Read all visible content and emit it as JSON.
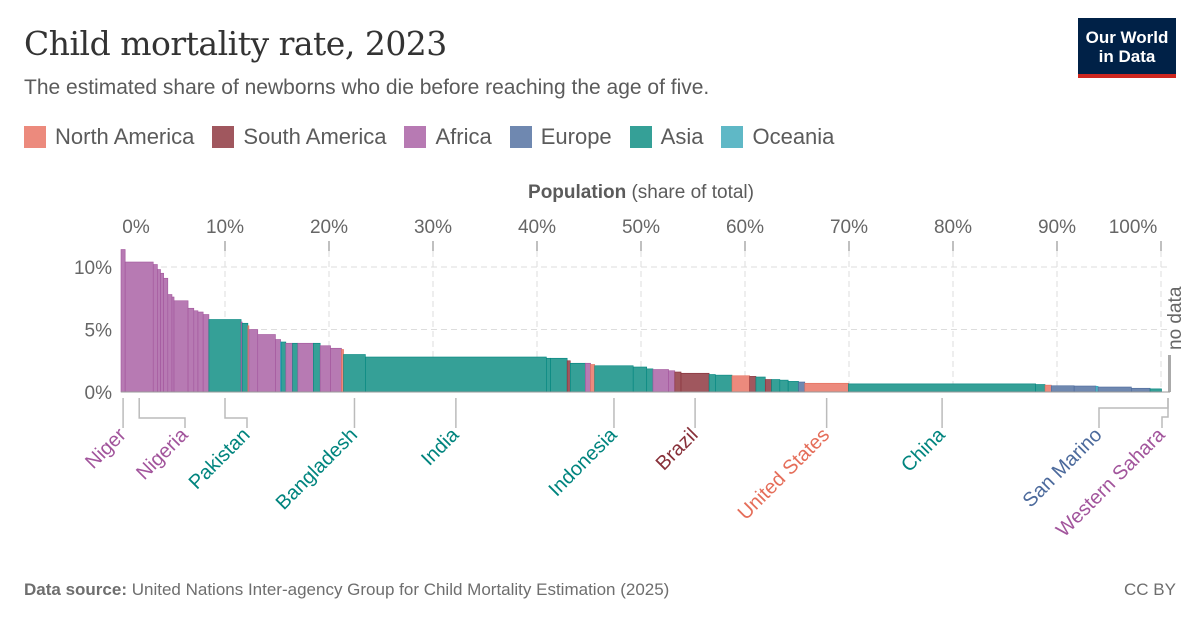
{
  "header": {
    "title": "Child mortality rate, 2023",
    "subtitle": "The estimated share of newborns who die before reaching the age of five.",
    "logo_line1": "Our World",
    "logo_line2": "in Data"
  },
  "legend": [
    {
      "label": "North America",
      "key": "NA",
      "color": "#ec8a7d"
    },
    {
      "label": "South America",
      "key": "SA",
      "color": "#a0575e"
    },
    {
      "label": "Africa",
      "key": "AF",
      "color": "#b77ab3"
    },
    {
      "label": "Europe",
      "key": "EU",
      "color": "#6f88b0"
    },
    {
      "label": "Asia",
      "key": "AS",
      "color": "#35a097"
    },
    {
      "label": "Oceania",
      "key": "OC",
      "color": "#5fb8c6"
    }
  ],
  "footer": {
    "source_label": "Data source:",
    "source_text": "United Nations Inter-agency Group for Child Mortality Estimation (2025)",
    "license": "CC BY"
  },
  "chart_data": {
    "type": "bar",
    "subtype": "variable-width (marimekko)",
    "xlabel_bold": "Population",
    "xlabel_rest": "(share of total)",
    "x_axis_position": "top",
    "xlim": [
      0,
      100
    ],
    "ylim": [
      0,
      12
    ],
    "x_ticks": [
      "0%",
      "10%",
      "20%",
      "30%",
      "40%",
      "50%",
      "60%",
      "70%",
      "80%",
      "90%",
      "100%"
    ],
    "y_ticks": [
      "0%",
      "5%",
      "10%"
    ],
    "grid": true,
    "no_data_label": "no data",
    "series_colors": {
      "NA": {
        "fill": "#ec8a7d",
        "stroke": "#e56e5a",
        "text": "#e56e5a"
      },
      "SA": {
        "fill": "#a0575e",
        "stroke": "#883039",
        "text": "#883039"
      },
      "AF": {
        "fill": "#b77ab3",
        "stroke": "#a2559c",
        "text": "#a2559c"
      },
      "EU": {
        "fill": "#6f88b0",
        "stroke": "#4c6a9c",
        "text": "#4c6a9c"
      },
      "AS": {
        "fill": "#35a097",
        "stroke": "#00847e",
        "text": "#00847e"
      },
      "OC": {
        "fill": "#5fb8c6",
        "stroke": "#18a5ba",
        "text": "#18a5ba"
      }
    },
    "bars": [
      {
        "entity": "Niger",
        "c": "AF",
        "share": 0.4,
        "rate": 11.4
      },
      {
        "entity": "Nigeria",
        "c": "AF",
        "share": 2.7,
        "rate": 10.4
      },
      {
        "c": "AF",
        "share": 0.4,
        "rate": 10.2
      },
      {
        "c": "AF",
        "share": 0.3,
        "rate": 9.8
      },
      {
        "c": "AF",
        "share": 0.3,
        "rate": 9.5
      },
      {
        "c": "AF",
        "share": 0.4,
        "rate": 9.1
      },
      {
        "c": "AF",
        "share": 0.4,
        "rate": 7.8
      },
      {
        "c": "AF",
        "share": 0.2,
        "rate": 7.6
      },
      {
        "c": "AF",
        "share": 1.35,
        "rate": 7.3
      },
      {
        "c": "AF",
        "share": 0.55,
        "rate": 6.7
      },
      {
        "c": "AF",
        "share": 0.4,
        "rate": 6.5
      },
      {
        "c": "AF",
        "share": 0.5,
        "rate": 6.4
      },
      {
        "c": "AF",
        "share": 0.55,
        "rate": 6.2
      },
      {
        "entity": "Pakistan",
        "c": "AS",
        "share": 3.1,
        "rate": 5.8
      },
      {
        "c": "AF",
        "share": 0.1,
        "rate": 5.6
      },
      {
        "c": "AS",
        "share": 0.55,
        "rate": 5.5
      },
      {
        "c": "NA",
        "share": 0.1,
        "rate": 5.3
      },
      {
        "c": "AF",
        "share": 0.85,
        "rate": 5.0
      },
      {
        "c": "AF",
        "share": 1.7,
        "rate": 4.6
      },
      {
        "c": "AF",
        "share": 0.5,
        "rate": 4.2
      },
      {
        "c": "OC",
        "share": 0.1,
        "rate": 4.0
      },
      {
        "c": "AS",
        "share": 0.4,
        "rate": 4.0
      },
      {
        "c": "AF",
        "share": 0.65,
        "rate": 3.9
      },
      {
        "c": "AS",
        "share": 0.5,
        "rate": 3.9
      },
      {
        "c": "AF",
        "share": 1.5,
        "rate": 3.9
      },
      {
        "c": "AS",
        "share": 0.65,
        "rate": 3.9
      },
      {
        "c": "AF",
        "share": 1.0,
        "rate": 3.7
      },
      {
        "c": "AF",
        "share": 1.05,
        "rate": 3.5
      },
      {
        "c": "NA",
        "share": 0.2,
        "rate": 3.4
      },
      {
        "entity": "Bangladesh",
        "c": "AS",
        "share": 2.1,
        "rate": 3.0
      },
      {
        "entity": "India",
        "c": "AS",
        "share": 17.4,
        "rate": 2.8
      },
      {
        "c": "AS",
        "share": 0.4,
        "rate": 2.7
      },
      {
        "c": "AS",
        "share": 1.6,
        "rate": 2.7
      },
      {
        "c": "SA",
        "share": 0.3,
        "rate": 2.5
      },
      {
        "c": "AS",
        "share": 1.45,
        "rate": 2.3
      },
      {
        "c": "AF",
        "share": 0.5,
        "rate": 2.3
      },
      {
        "c": "NA",
        "share": 0.4,
        "rate": 2.2
      },
      {
        "entity": "Indonesia",
        "c": "AS",
        "share": 3.7,
        "rate": 2.1
      },
      {
        "c": "AS",
        "share": 1.3,
        "rate": 2.0
      },
      {
        "c": "AS",
        "share": 0.6,
        "rate": 1.85
      },
      {
        "c": "AF",
        "share": 1.5,
        "rate": 1.8
      },
      {
        "c": "AF",
        "share": 0.6,
        "rate": 1.7
      },
      {
        "c": "SA",
        "share": 0.6,
        "rate": 1.6
      },
      {
        "entity": "Brazil",
        "c": "SA",
        "share": 2.7,
        "rate": 1.5
      },
      {
        "c": "AS",
        "share": 0.6,
        "rate": 1.4
      },
      {
        "c": "AS",
        "share": 1.6,
        "rate": 1.35
      },
      {
        "c": "NA",
        "share": 1.7,
        "rate": 1.3
      },
      {
        "c": "SA",
        "share": 0.6,
        "rate": 1.25
      },
      {
        "c": "AS",
        "share": 0.9,
        "rate": 1.2
      },
      {
        "c": "SA",
        "share": 0.6,
        "rate": 1.0
      },
      {
        "c": "AS",
        "share": 0.8,
        "rate": 1.0
      },
      {
        "c": "AS",
        "share": 0.8,
        "rate": 0.95
      },
      {
        "c": "AS",
        "share": 1.0,
        "rate": 0.85
      },
      {
        "c": "EU",
        "share": 0.6,
        "rate": 0.8
      },
      {
        "entity": "United States",
        "c": "NA",
        "share": 4.2,
        "rate": 0.7
      },
      {
        "entity": "China",
        "c": "AS",
        "share": 18.0,
        "rate": 0.65
      },
      {
        "c": "AS",
        "share": 0.9,
        "rate": 0.6
      },
      {
        "c": "NA",
        "share": 0.6,
        "rate": 0.55
      },
      {
        "c": "EU",
        "share": 2.2,
        "rate": 0.5
      },
      {
        "c": "EU",
        "share": 2.1,
        "rate": 0.48
      },
      {
        "c": "OC",
        "share": 0.2,
        "rate": 0.45
      },
      {
        "c": "EU",
        "share": 3.2,
        "rate": 0.4
      },
      {
        "c": "EU",
        "share": 1.8,
        "rate": 0.3
      },
      {
        "c": "AS",
        "share": 1.1,
        "rate": 0.25
      }
    ],
    "labels": [
      {
        "text": "Niger",
        "c": "AF"
      },
      {
        "text": "Nigeria",
        "c": "AF"
      },
      {
        "text": "Pakistan",
        "c": "AS"
      },
      {
        "text": "Bangladesh",
        "c": "AS"
      },
      {
        "text": "India",
        "c": "AS"
      },
      {
        "text": "Indonesia",
        "c": "AS"
      },
      {
        "text": "Brazil",
        "c": "SA"
      },
      {
        "text": "United States",
        "c": "NA"
      },
      {
        "text": "China",
        "c": "AS"
      },
      {
        "text": "San Marino",
        "c": "EU"
      },
      {
        "text": "Western Sahara",
        "c": "AF"
      }
    ]
  }
}
